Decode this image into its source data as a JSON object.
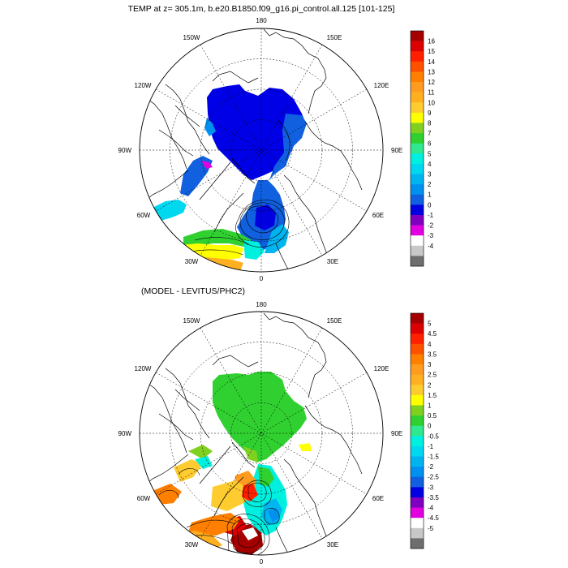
{
  "top_panel": {
    "title": "TEMP at z= 305.1m, b.e20.B1850.f09_g16.pi_control.all.125 [101-125]",
    "lon_labels": [
      "180",
      "150E",
      "120E",
      "90E",
      "60E",
      "30E",
      "0",
      "30W",
      "60W",
      "90W",
      "120W",
      "150W"
    ],
    "colorbar_labels": [
      "16",
      "15",
      "14",
      "13",
      "12",
      "11",
      "10",
      "9",
      "8",
      "7",
      "6",
      "5",
      "4",
      "3",
      "2",
      "1",
      "0",
      "-1",
      "-2",
      "-3",
      "-4"
    ],
    "colorbar_colors": [
      "#a50000",
      "#dc0000",
      "#ff2000",
      "#ff5000",
      "#ff8000",
      "#ff9c20",
      "#ffb020",
      "#ffcc30",
      "#ffff00",
      "#80d020",
      "#30d030",
      "#30e890",
      "#00f0e0",
      "#00d8f0",
      "#00b4f0",
      "#0090f0",
      "#1060e0",
      "#0000e0",
      "#8000c0",
      "#e000e0",
      "#ffffff",
      "#c8c8c8",
      "#6e6e6e"
    ]
  },
  "bottom_panel": {
    "title": "(MODEL - LEVITUS/PHC2)",
    "lon_labels": [
      "180",
      "150E",
      "120E",
      "90E",
      "60E",
      "30E",
      "0",
      "30W",
      "60W",
      "90W",
      "120W",
      "150W"
    ],
    "colorbar_labels": [
      "5",
      "4.5",
      "4",
      "3.5",
      "3",
      "2.5",
      "2",
      "1.5",
      "1",
      "0.5",
      "0",
      "-0.5",
      "-1",
      "-1.5",
      "-2",
      "-2.5",
      "-3",
      "-3.5",
      "-4",
      "-4.5",
      "-5"
    ],
    "colorbar_colors": [
      "#a50000",
      "#dc0000",
      "#ff2000",
      "#ff5000",
      "#ff8000",
      "#ff9c20",
      "#ffb020",
      "#ffcc30",
      "#ffff00",
      "#80d020",
      "#30d030",
      "#30e890",
      "#00f0e0",
      "#00d8f0",
      "#00b4f0",
      "#0090f0",
      "#1060e0",
      "#0000e0",
      "#8000c0",
      "#e000e0",
      "#ffffff",
      "#c8c8c8",
      "#6e6e6e"
    ]
  }
}
